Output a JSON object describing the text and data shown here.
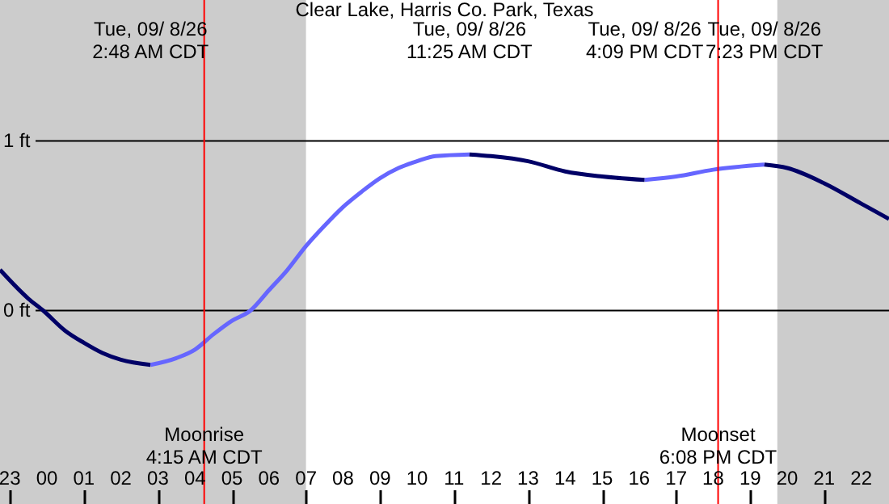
{
  "chart_data": {
    "type": "line",
    "title": "Clear Lake, Harris Co. Park, Texas",
    "xlim": [
      "--09-07T22:44",
      "--09-08T22:45"
    ],
    "ylim": [
      -1.14,
      1.83
    ],
    "xticks": [
      {
        "value": "--09-07T23:00",
        "label": "23"
      },
      {
        "value": "--09-08T00:00",
        "label": "00"
      },
      {
        "value": "--09-08T01:00",
        "label": "01"
      },
      {
        "value": "--09-08T02:00",
        "label": "02"
      },
      {
        "value": "--09-08T03:00",
        "label": "03"
      },
      {
        "value": "--09-08T04:00",
        "label": "04"
      },
      {
        "value": "--09-08T05:00",
        "label": "05"
      },
      {
        "value": "--09-08T06:00",
        "label": "06"
      },
      {
        "value": "--09-08T07:00",
        "label": "07"
      },
      {
        "value": "--09-08T08:00",
        "label": "08"
      },
      {
        "value": "--09-08T09:00",
        "label": "09"
      },
      {
        "value": "--09-08T10:00",
        "label": "10"
      },
      {
        "value": "--09-08T11:00",
        "label": "11"
      },
      {
        "value": "--09-08T12:00",
        "label": "12"
      },
      {
        "value": "--09-08T13:00",
        "label": "13"
      },
      {
        "value": "--09-08T14:00",
        "label": "14"
      },
      {
        "value": "--09-08T15:00",
        "label": "15"
      },
      {
        "value": "--09-08T16:00",
        "label": "16"
      },
      {
        "value": "--09-08T17:00",
        "label": "17"
      },
      {
        "value": "--09-08T18:00",
        "label": "18"
      },
      {
        "value": "--09-08T19:00",
        "label": "19"
      },
      {
        "value": "--09-08T20:00",
        "label": "20"
      },
      {
        "value": "--09-08T21:00",
        "label": "21"
      },
      {
        "value": "--09-08T22:00",
        "label": "22"
      }
    ],
    "yticks": [
      {
        "value": 0,
        "label": "0 ft"
      },
      {
        "value": 1,
        "label": "1 ft"
      }
    ],
    "grid": "y",
    "series": [
      {
        "color": "#000066",
        "x": [
          "--09-07T22:44",
          "--09-07T23:30",
          "--09-07T23:54",
          "--09-08T00:30",
          "--09-08T01:00",
          "--09-08T01:30",
          "--09-08T02:00",
          "--09-08T02:48"
        ],
        "values": [
          0.24,
          0.07,
          0,
          -0.12,
          -0.19,
          -0.25,
          -0.29,
          -0.32
        ]
      },
      {
        "color": "#6666ff",
        "x": [
          "--09-08T02:48",
          "--09-08T03:30",
          "--09-08T04:00",
          "--09-08T04:30",
          "--09-08T05:00",
          "--09-08T05:30",
          "--09-08T06:00",
          "--09-08T06:30",
          "--09-08T07:00",
          "--09-08T07:30",
          "--09-08T08:00",
          "--09-08T08:30",
          "--09-08T09:00",
          "--09-08T09:30",
          "--09-08T10:00",
          "--09-08T10:30",
          "--09-08T11:25"
        ],
        "values": [
          -0.32,
          -0.28,
          -0.23,
          -0.14,
          -0.06,
          0,
          0.12,
          0.24,
          0.38,
          0.5,
          0.61,
          0.7,
          0.78,
          0.84,
          0.88,
          0.91,
          0.92
        ]
      },
      {
        "color": "#000066",
        "x": [
          "--09-08T11:25",
          "--09-08T12:00",
          "--09-08T13:00",
          "--09-08T14:00",
          "--09-08T15:00",
          "--09-08T16:09"
        ],
        "values": [
          0.92,
          0.91,
          0.88,
          0.82,
          0.79,
          0.77
        ]
      },
      {
        "color": "#6666ff",
        "x": [
          "--09-08T16:09",
          "--09-08T17:00",
          "--09-08T18:00",
          "--09-08T19:23"
        ],
        "values": [
          0.77,
          0.79,
          0.83,
          0.86
        ]
      },
      {
        "color": "#000066",
        "x": [
          "--09-08T19:23",
          "--09-08T20:00",
          "--09-08T21:00",
          "--09-08T22:00",
          "--09-08T22:45"
        ],
        "values": [
          0.86,
          0.84,
          0.75,
          0.63,
          0.54
        ]
      }
    ],
    "bands": [
      {
        "axis": "x",
        "from": "--09-07T22:44",
        "to": "--09-08T07:00",
        "color": "#cccccc"
      },
      {
        "axis": "x",
        "from": "--09-08T19:44",
        "to": "--09-08T22:45",
        "color": "#cccccc"
      }
    ],
    "ref_lines": [
      {
        "axis": "x",
        "value": "--09-08T04:15",
        "label": "Moonrise\n4:15 AM CDT",
        "color": "#ff0000"
      },
      {
        "axis": "x",
        "value": "--09-08T18:08",
        "label": "Moonset\n6:08 PM CDT",
        "color": "#ff0000"
      }
    ],
    "annotations": [
      "Tue, 09/ 8/26\n2:48 AM CDT",
      "Tue, 09/ 8/26\n11:25 AM CDT",
      "Tue, 09/ 8/26\n4:09 PM CDT",
      "Tue, 09/ 8/26\n7:23 PM CDT"
    ]
  }
}
